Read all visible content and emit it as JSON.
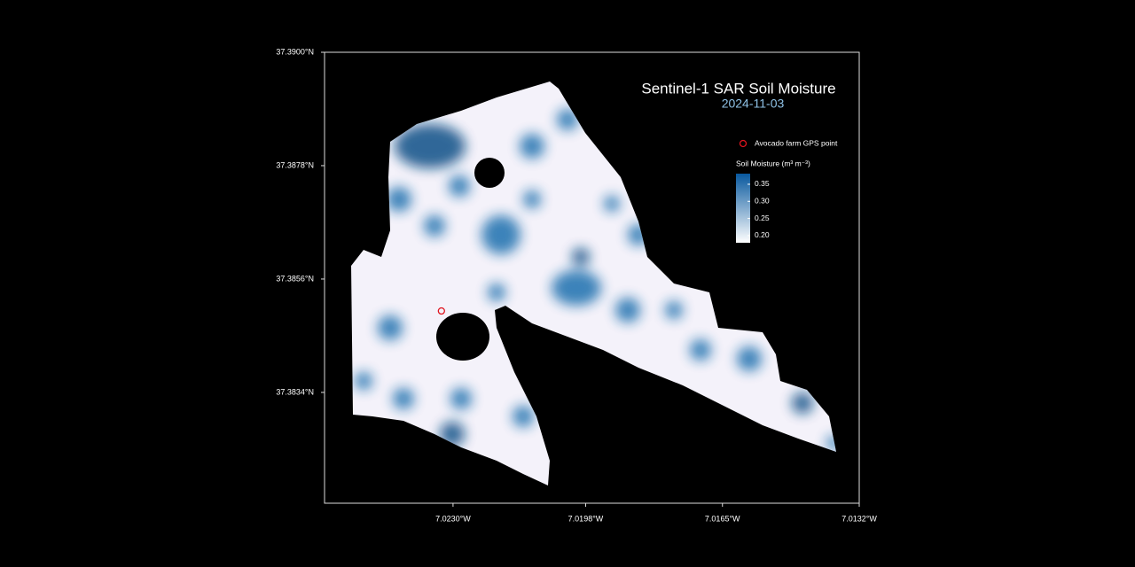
{
  "chart_data": {
    "type": "map",
    "title": "Sentinel-1 SAR Soil Moisture",
    "subtitle": "2024-11-03",
    "xlim": [
      -7.0261,
      -7.0132
    ],
    "ylim": [
      37.38125,
      37.39
    ],
    "xticks": [
      {
        "value": -7.023,
        "label": "7.0230°W"
      },
      {
        "value": -7.0198,
        "label": "7.0198°W"
      },
      {
        "value": -7.0165,
        "label": "7.0165°W"
      },
      {
        "value": -7.0132,
        "label": "7.0132°W"
      }
    ],
    "yticks": [
      {
        "value": 37.39,
        "label": "37.3900°N"
      },
      {
        "value": 37.3878,
        "label": "37.3878°N"
      },
      {
        "value": 37.3856,
        "label": "37.3856°N"
      },
      {
        "value": 37.3834,
        "label": "37.3834°N"
      }
    ],
    "points": [
      {
        "name": "Avocado farm GPS point",
        "x": -7.02328,
        "y": 37.38498,
        "color": "#e0141e"
      }
    ],
    "colorbar": {
      "label": "Soil Moisture (m³ m⁻³)",
      "lim": [
        0.179,
        0.381
      ],
      "ticks": [
        {
          "value": 0.35,
          "label": "0.35"
        },
        {
          "value": 0.3,
          "label": "0.30"
        },
        {
          "value": 0.25,
          "label": "0.25"
        },
        {
          "value": 0.2,
          "label": "0.20"
        }
      ],
      "colors": [
        "#ffffff",
        "#08589e"
      ]
    }
  }
}
